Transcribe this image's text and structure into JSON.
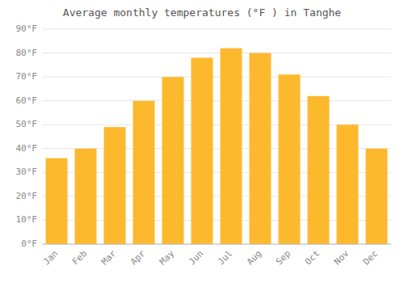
{
  "chart_data": {
    "type": "bar",
    "title": "Average monthly temperatures (°F ) in Tanghe",
    "categories": [
      "Jan",
      "Feb",
      "Mar",
      "Apr",
      "May",
      "Jun",
      "Jul",
      "Aug",
      "Sep",
      "Oct",
      "Nov",
      "Dec"
    ],
    "values": [
      36,
      40,
      49,
      60,
      70,
      78,
      82,
      80,
      71,
      62,
      50,
      40
    ],
    "color": "#FDB92E",
    "ylim": [
      0,
      90
    ],
    "yticks": [
      {
        "value": 0,
        "label": "0°F"
      },
      {
        "value": 10,
        "label": "10°F"
      },
      {
        "value": 20,
        "label": "20°F"
      },
      {
        "value": 30,
        "label": "30°F"
      },
      {
        "value": 40,
        "label": "40°F"
      },
      {
        "value": 50,
        "label": "50°F"
      },
      {
        "value": 60,
        "label": "60°F"
      },
      {
        "value": 70,
        "label": "70°F"
      },
      {
        "value": 80,
        "label": "80°F"
      },
      {
        "value": 90,
        "label": "90°F"
      }
    ],
    "grid": true
  }
}
